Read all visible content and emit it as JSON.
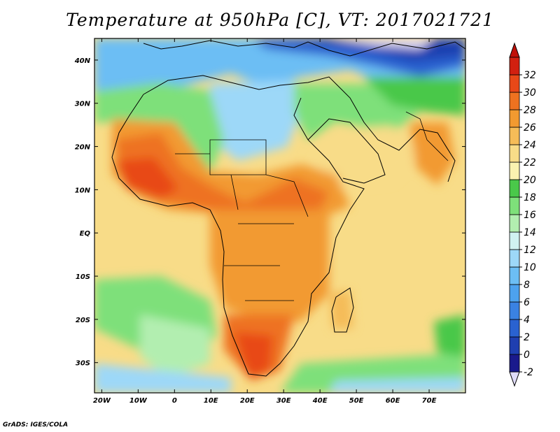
{
  "title": "Temperature at 950hPa [C], VT: 2017021721",
  "credit": "GrADS: IGES/COLA",
  "map": {
    "lon_range": [
      -22,
      80
    ],
    "lat_range": [
      -37,
      45
    ],
    "lon_ticks": [
      {
        "lon": -20,
        "label": "20W"
      },
      {
        "lon": -10,
        "label": "10W"
      },
      {
        "lon": 0,
        "label": "0"
      },
      {
        "lon": 10,
        "label": "10E"
      },
      {
        "lon": 20,
        "label": "20E"
      },
      {
        "lon": 30,
        "label": "30E"
      },
      {
        "lon": 40,
        "label": "40E"
      },
      {
        "lon": 50,
        "label": "50E"
      },
      {
        "lon": 60,
        "label": "60E"
      },
      {
        "lon": 70,
        "label": "70E"
      }
    ],
    "lat_ticks": [
      {
        "lat": 40,
        "label": "40N"
      },
      {
        "lat": 30,
        "label": "30N"
      },
      {
        "lat": 20,
        "label": "20N"
      },
      {
        "lat": 10,
        "label": "10N"
      },
      {
        "lat": 0,
        "label": "EQ"
      },
      {
        "lat": -10,
        "label": "10S"
      },
      {
        "lat": -20,
        "label": "20S"
      },
      {
        "lat": -30,
        "label": "30S"
      }
    ]
  },
  "colorbar": {
    "units": "C",
    "levels": [
      "-2",
      "0",
      "2",
      "4",
      "6",
      "8",
      "10",
      "12",
      "14",
      "16",
      "18",
      "20",
      "22",
      "24",
      "26",
      "28",
      "30",
      "32"
    ],
    "colors": [
      "#1a1a8c",
      "#1f3fb0",
      "#2a62d0",
      "#3a82e2",
      "#4da2ee",
      "#6cbef4",
      "#9dd8f8",
      "#d0f2f2",
      "#b2eeb0",
      "#7ee07a",
      "#4ac84a",
      "#fbf3b0",
      "#f8dc88",
      "#f5bc58",
      "#f29a30",
      "#ee7220",
      "#e84818",
      "#d22010"
    ],
    "under_color": "#e0dcf8",
    "over_color": "#c01008"
  }
}
